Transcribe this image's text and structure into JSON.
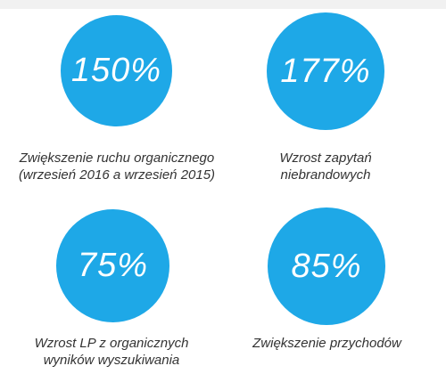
{
  "accent_color": "#1ea8e7",
  "stats": [
    {
      "value": "150%",
      "caption_line1": "Zwiększenie ruchu organicznego",
      "caption_line2": "(wrzesień 2016 a wrzesień 2015)"
    },
    {
      "value": "177%",
      "caption_line1": "Wzrost zapytań",
      "caption_line2": "niebrandowych"
    },
    {
      "value": "75%",
      "caption_line1": "Wzrost LP z organicznych",
      "caption_line2": "wyników wyszukiwania"
    },
    {
      "value": "85%",
      "caption_line1": "Zwiększenie przychodów",
      "caption_line2": ""
    }
  ]
}
